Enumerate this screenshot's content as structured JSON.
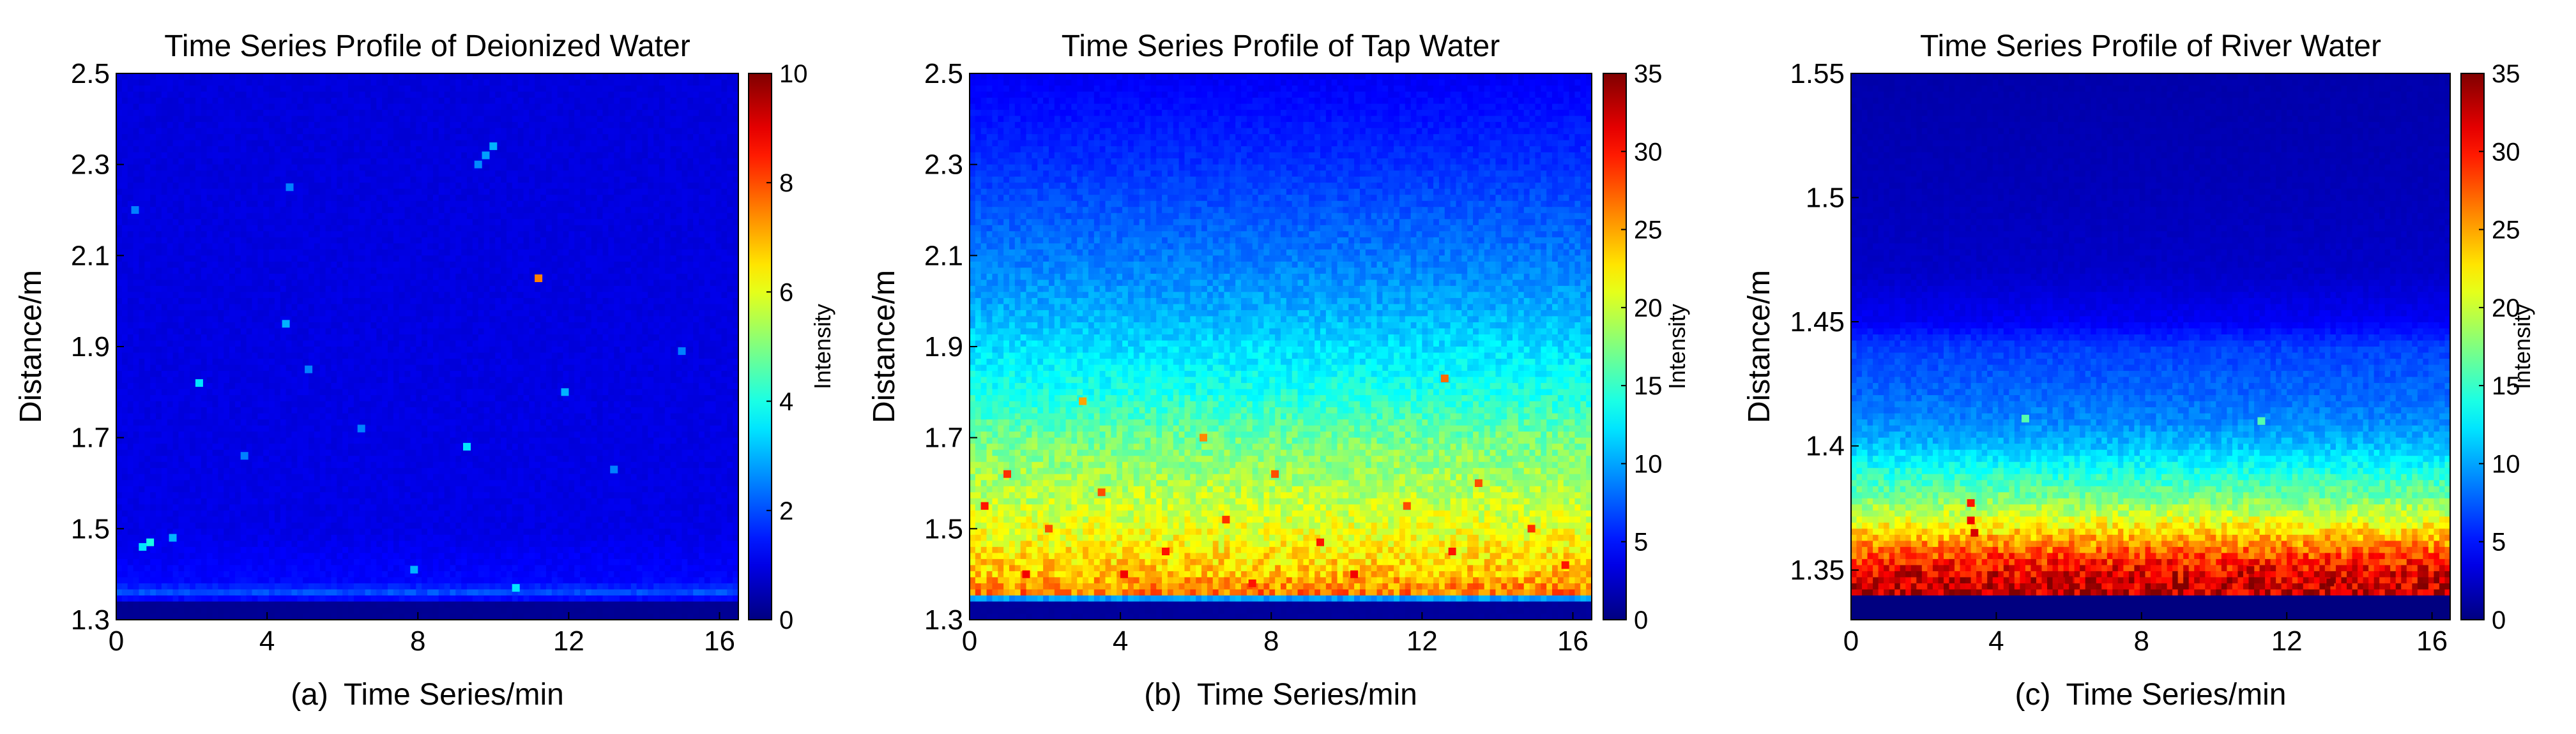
{
  "chart_data": [
    {
      "type": "heatmap",
      "panel": "(a)",
      "title": "Time Series Profile of Deionized Water",
      "xlabel": "Time Series/min",
      "ylabel": "Distance/m",
      "xlim": [
        0,
        16.5
      ],
      "ylim": [
        1.3,
        2.5
      ],
      "xticks": [
        "0",
        "4",
        "8",
        "12",
        "16"
      ],
      "yticks": [
        "1.3",
        "1.5",
        "1.7",
        "1.9",
        "2.1",
        "2.3",
        "2.5"
      ],
      "colorbar": {
        "label": "Intensity",
        "range": [
          0,
          10
        ],
        "ticks": [
          "0",
          "2",
          "4",
          "6",
          "8",
          "10"
        ]
      },
      "profile": [
        [
          1.3,
          0.2
        ],
        [
          1.345,
          0.2
        ],
        [
          1.35,
          3.5
        ],
        [
          1.36,
          2.0
        ],
        [
          1.38,
          1.3
        ],
        [
          1.5,
          1.0
        ],
        [
          2.5,
          0.9
        ]
      ],
      "hotspots": [
        [
          11.2,
          2.05,
          7.5
        ],
        [
          0.9,
          1.47,
          4.0
        ],
        [
          0.7,
          1.46,
          3.5
        ],
        [
          1.5,
          1.48,
          3.0
        ],
        [
          2.2,
          1.82,
          3.5
        ],
        [
          4.5,
          1.95,
          3.0
        ],
        [
          9.3,
          1.68,
          3.5
        ],
        [
          11.9,
          1.8,
          3.0
        ],
        [
          7.9,
          1.41,
          3.0
        ],
        [
          10.6,
          1.37,
          3.5
        ],
        [
          0.5,
          2.2,
          2.5
        ],
        [
          4.6,
          2.25,
          2.5
        ],
        [
          10.0,
          2.34,
          3.0
        ],
        [
          9.8,
          2.32,
          2.8
        ],
        [
          9.6,
          2.3,
          2.6
        ],
        [
          5.1,
          1.85,
          2.5
        ],
        [
          6.5,
          1.72,
          2.5
        ],
        [
          13.2,
          1.63,
          2.5
        ],
        [
          15.0,
          1.89,
          2.5
        ],
        [
          3.4,
          1.66,
          2.5
        ]
      ]
    },
    {
      "type": "heatmap",
      "panel": "(b)",
      "title": "Time Series Profile of Tap Water",
      "xlabel": "Time Series/min",
      "ylabel": "Distance/m",
      "xlim": [
        0,
        16.5
      ],
      "ylim": [
        1.3,
        2.5
      ],
      "xticks": [
        "0",
        "4",
        "8",
        "12",
        "16"
      ],
      "yticks": [
        "1.3",
        "1.5",
        "1.7",
        "1.9",
        "2.1",
        "2.3",
        "2.5"
      ],
      "colorbar": {
        "label": "Intensity",
        "range": [
          0,
          35
        ],
        "ticks": [
          "0",
          "5",
          "10",
          "15",
          "20",
          "25",
          "30",
          "35"
        ]
      },
      "profile": [
        [
          1.3,
          1.0
        ],
        [
          1.345,
          1.0
        ],
        [
          1.35,
          27
        ],
        [
          1.4,
          24
        ],
        [
          1.5,
          21
        ],
        [
          1.6,
          19
        ],
        [
          1.7,
          17
        ],
        [
          1.8,
          14
        ],
        [
          1.9,
          12
        ],
        [
          2.0,
          10
        ],
        [
          2.1,
          8.5
        ],
        [
          2.3,
          6
        ],
        [
          2.5,
          4
        ]
      ],
      "hotspots": [
        [
          0.4,
          1.55,
          30
        ],
        [
          1.0,
          1.62,
          29
        ],
        [
          2.1,
          1.5,
          28
        ],
        [
          3.5,
          1.58,
          28
        ],
        [
          5.2,
          1.45,
          30
        ],
        [
          6.8,
          1.52,
          29
        ],
        [
          8.1,
          1.62,
          28
        ],
        [
          9.3,
          1.47,
          30
        ],
        [
          10.2,
          1.4,
          31
        ],
        [
          11.6,
          1.55,
          28
        ],
        [
          12.8,
          1.45,
          30
        ],
        [
          13.5,
          1.6,
          28
        ],
        [
          14.9,
          1.5,
          29
        ],
        [
          15.8,
          1.42,
          30
        ],
        [
          4.1,
          1.4,
          31
        ],
        [
          7.5,
          1.38,
          30
        ],
        [
          1.5,
          1.4,
          31
        ],
        [
          12.6,
          1.83,
          27
        ],
        [
          6.2,
          1.7,
          26
        ],
        [
          3.0,
          1.78,
          25
        ]
      ]
    },
    {
      "type": "heatmap",
      "panel": "(c)",
      "title": "Time Series Profile of River Water",
      "xlabel": "Time Series/min",
      "ylabel": "Distance/m",
      "xlim": [
        0,
        16.5
      ],
      "ylim": [
        1.33,
        1.55
      ],
      "xticks": [
        "0",
        "4",
        "8",
        "12",
        "16"
      ],
      "yticks": [
        "1.35",
        "1.4",
        "1.45",
        "1.5",
        "1.55"
      ],
      "colorbar": {
        "label": "Intensity",
        "range": [
          0,
          35
        ],
        "ticks": [
          "0",
          "5",
          "10",
          "15",
          "20",
          "25",
          "30",
          "35"
        ]
      },
      "profile": [
        [
          1.33,
          0.0
        ],
        [
          1.339,
          0.0
        ],
        [
          1.34,
          33
        ],
        [
          1.35,
          31
        ],
        [
          1.36,
          26
        ],
        [
          1.37,
          21
        ],
        [
          1.38,
          17
        ],
        [
          1.39,
          14
        ],
        [
          1.4,
          11
        ],
        [
          1.41,
          9
        ],
        [
          1.42,
          8
        ],
        [
          1.44,
          6.5
        ],
        [
          1.45,
          4
        ],
        [
          1.47,
          2.5
        ],
        [
          1.5,
          2
        ],
        [
          1.55,
          1.5
        ]
      ],
      "hotspots": [
        [
          3.3,
          1.377,
          30
        ],
        [
          3.3,
          1.37,
          31
        ],
        [
          3.4,
          1.365,
          32
        ],
        [
          13.2,
          1.345,
          35
        ],
        [
          11.0,
          1.35,
          34
        ],
        [
          6.0,
          1.346,
          34
        ],
        [
          4.8,
          1.411,
          16
        ],
        [
          11.3,
          1.41,
          16
        ]
      ]
    }
  ]
}
